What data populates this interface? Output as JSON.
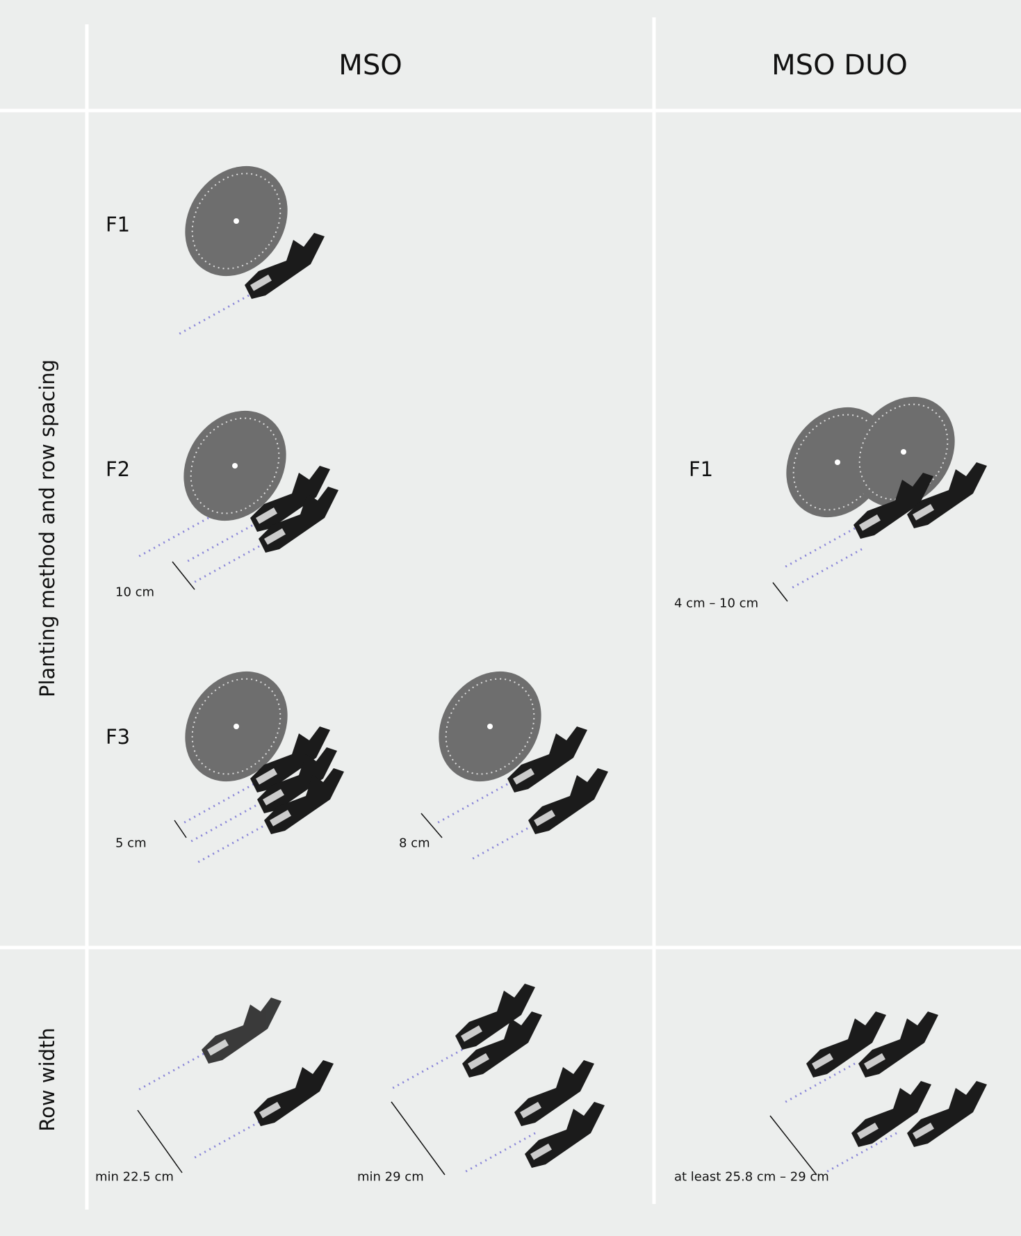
{
  "header": {
    "columns": [
      "MSO",
      "MSO DUO"
    ]
  },
  "rows": [
    {
      "label": "Planting method and row spacing",
      "mso": [
        {
          "method": "F1"
        },
        {
          "method": "F2",
          "spacing": "10 cm"
        },
        {
          "method": "F3",
          "spacings": [
            "5 cm",
            "8 cm"
          ]
        }
      ],
      "duo": [
        {
          "method": "F1",
          "spacing": "4 cm – 10 cm"
        }
      ]
    },
    {
      "label": "Row width",
      "mso": [
        "min 22.5 cm",
        "min 29 cm"
      ],
      "duo": [
        "at least 25.8 cm – 29 cm"
      ]
    }
  ]
}
